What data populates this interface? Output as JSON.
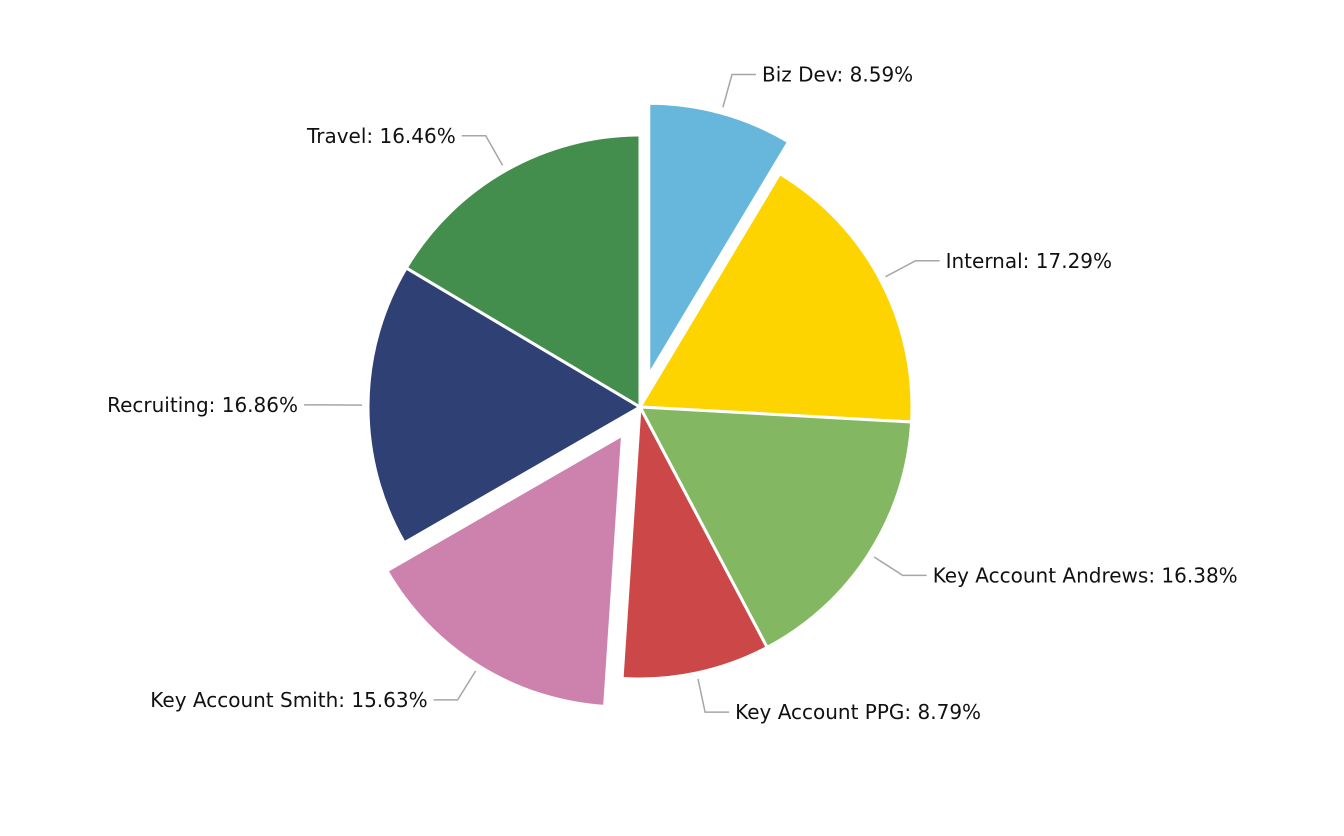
{
  "chart_data": {
    "type": "pie",
    "slices": [
      {
        "name": "Biz Dev",
        "value": 8.59,
        "label": "Biz Dev: 8.59%",
        "color": "#67b6dc",
        "exploded": true
      },
      {
        "name": "Internal",
        "value": 17.29,
        "label": "Internal: 17.29%",
        "color": "#fdd400",
        "exploded": false
      },
      {
        "name": "Key Account Andrews",
        "value": 16.38,
        "label": "Key Account Andrews: 16.38%",
        "color": "#84b761",
        "exploded": false
      },
      {
        "name": "Key Account PPG",
        "value": 8.79,
        "label": "Key Account PPG: 8.79%",
        "color": "#cc4748",
        "exploded": false
      },
      {
        "name": "Key Account Smith",
        "value": 15.63,
        "label": "Key Account Smith: 15.63%",
        "color": "#cd82ad",
        "exploded": true
      },
      {
        "name": "Recruiting",
        "value": 16.86,
        "label": "Recruiting: 16.86%",
        "color": "#2f4074",
        "exploded": false
      },
      {
        "name": "Travel",
        "value": 16.46,
        "label": "Travel: 16.46%",
        "color": "#448e4d",
        "exploded": false
      }
    ],
    "start_angle": "12 o'clock",
    "direction": "clockwise",
    "legend": "none"
  }
}
